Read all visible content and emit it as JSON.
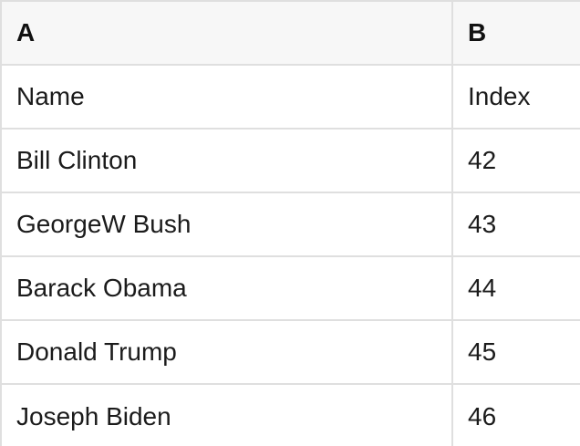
{
  "app": {
    "type": "spreadsheet-table-preview"
  },
  "colors": {
    "header_bg": "#f7f7f7",
    "row_bg": "#ffffff",
    "border": "#dfdfdf",
    "text": "#1b1b1b",
    "header_text": "#111111"
  },
  "table": {
    "column_headers": [
      "A",
      "B"
    ],
    "rows": [
      {
        "name": "Name",
        "index": "Index"
      },
      {
        "name": "Bill Clinton",
        "index": "42"
      },
      {
        "name": "GeorgeW Bush",
        "index": "43"
      },
      {
        "name": "Barack Obama",
        "index": "44"
      },
      {
        "name": "Donald Trump",
        "index": "45"
      },
      {
        "name": "Joseph Biden",
        "index": "46"
      }
    ]
  }
}
